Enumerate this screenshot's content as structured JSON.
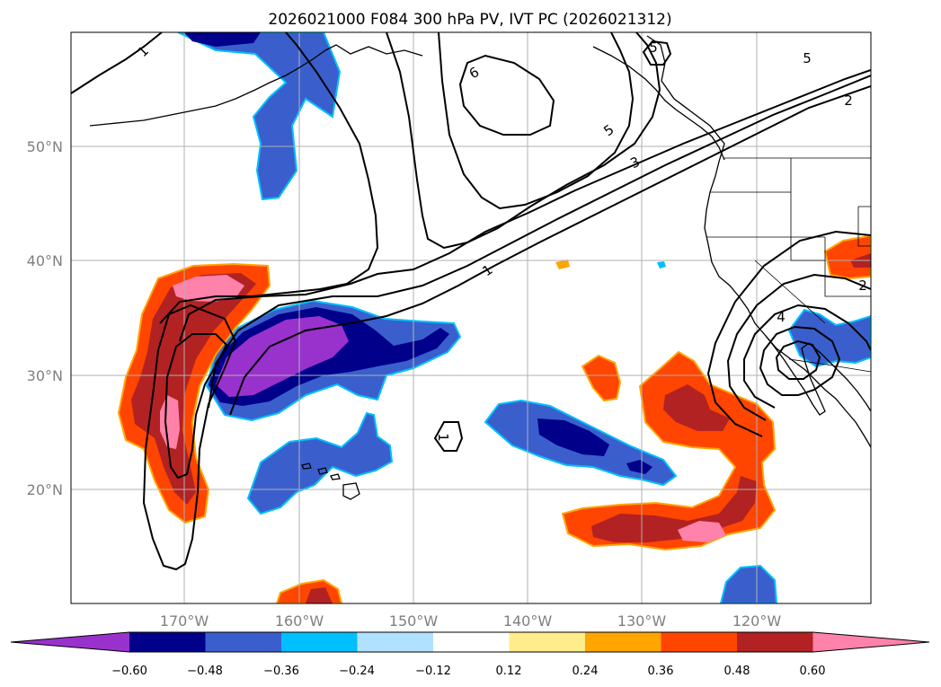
{
  "title": "2026021000 F084 300 hPa PV, IVT PC (2026021312)",
  "map": {
    "lat_ticks": [
      "50°N",
      "40°N",
      "30°N",
      "20°N"
    ],
    "lon_ticks": [
      "170°W",
      "160°W",
      "150°W",
      "140°W",
      "130°W",
      "120°W"
    ],
    "contour_labels": [
      "1",
      "6",
      "5",
      "5",
      "5",
      "2",
      "3",
      "1",
      "4",
      "2",
      "1"
    ]
  },
  "colorbar": {
    "colors": [
      "#9932cc",
      "#00008b",
      "#3a5fcd",
      "#00bfff",
      "#b0e2ff",
      "#ffffff",
      "#ffec8b",
      "#ffa500",
      "#ff4500",
      "#b22222",
      "#ff82ab"
    ],
    "tick_labels": [
      "−0.60",
      "−0.48",
      "−0.36",
      "−0.24",
      "−0.12",
      "0.12",
      "0.24",
      "0.36",
      "0.48",
      "0.60"
    ]
  }
}
